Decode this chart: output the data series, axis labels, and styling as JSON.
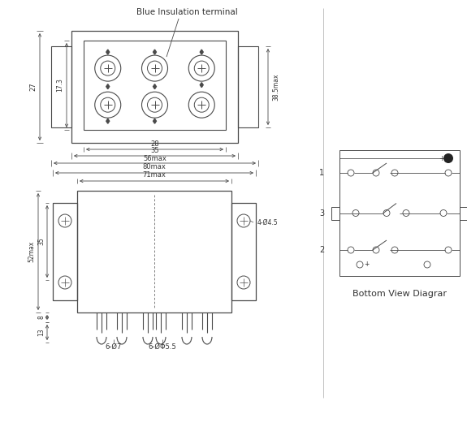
{
  "bg_color": "#ffffff",
  "lc": "#4a4a4a",
  "tc": "#333333",
  "title_annotation": "Blue Insulation terminal",
  "bottom_view_label": "Bottom View Diagrar",
  "dim_labels": {
    "56max": "56max",
    "35": "35",
    "28": "28",
    "27": "27",
    "17_3": "17.3",
    "38_5max": "38.5max",
    "80max": "80max",
    "71max": "71max",
    "52max": "52max",
    "35b": "35",
    "8": "8",
    "13": "13",
    "6_d7": "6-Ø7",
    "6_d5_5": "6-ØΦ5.5",
    "4_d4_5": "4-Ø4.5"
  }
}
